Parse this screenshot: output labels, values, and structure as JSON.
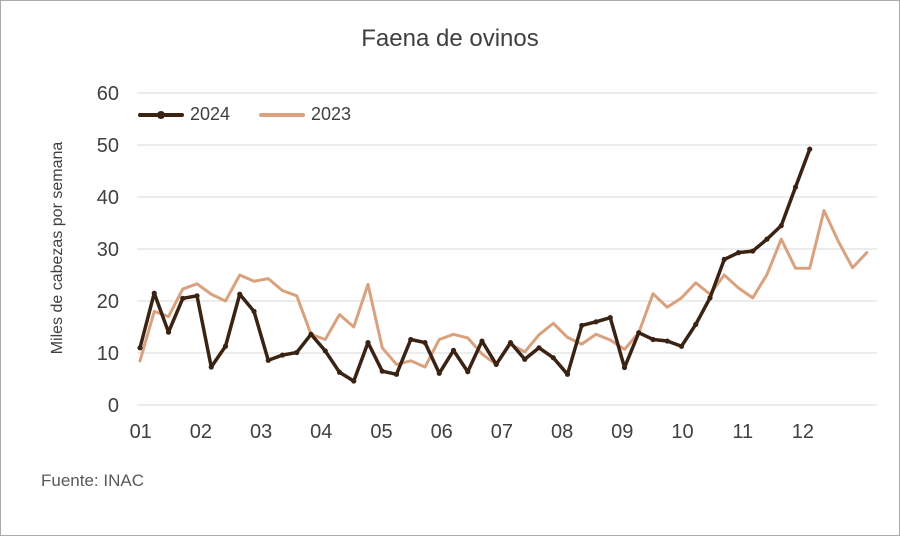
{
  "chart_data": {
    "type": "line",
    "title": "Faena de ovinos",
    "ylabel": "Miles de cabezas por semana",
    "source": "Fuente: INAC",
    "x_tick_labels": [
      "01",
      "02",
      "03",
      "04",
      "05",
      "06",
      "07",
      "08",
      "09",
      "10",
      "11",
      "12"
    ],
    "y_ticks": [
      0,
      10,
      20,
      30,
      40,
      50,
      60
    ],
    "ylim": [
      0,
      60
    ],
    "x_unit": "semana",
    "weeks": 52,
    "grid": true,
    "legend_position": "top-left-inside",
    "colors": {
      "s2024": "#3B2314",
      "s2023": "#D9A17E",
      "grid": "#D9D9D9",
      "text": "#404040"
    },
    "series": [
      {
        "name": "2024",
        "color": "#3B2314",
        "marker": true,
        "values": [
          11,
          21.5,
          14,
          20.5,
          21,
          7.3,
          11.3,
          21.3,
          18,
          8.6,
          9.6,
          10.1,
          13.6,
          10.4,
          6.3,
          4.6,
          12,
          6.5,
          5.9,
          12.6,
          12,
          6.1,
          10.5,
          6.4,
          12.3,
          7.8,
          12,
          8.8,
          11,
          9.1,
          5.9,
          15.3,
          16,
          16.8,
          7.2,
          13.9,
          12.6,
          12.3,
          11.3,
          15.5,
          20.6,
          28,
          29.3,
          29.6,
          31.9,
          34.5,
          41.9,
          49.2
        ]
      },
      {
        "name": "2023",
        "color": "#D9A17E",
        "marker": false,
        "values": [
          8.5,
          18,
          17,
          22.3,
          23.3,
          21.3,
          20,
          25,
          23.8,
          24.3,
          22,
          21,
          13.6,
          12.6,
          17.4,
          15,
          23.2,
          11,
          7.8,
          8.5,
          7.3,
          12.6,
          13.6,
          12.9,
          9.8,
          7.8,
          11.7,
          10.2,
          13.5,
          15.7,
          13,
          11.7,
          13.6,
          12.5,
          10.7,
          13.9,
          21.4,
          18.8,
          20.6,
          23.5,
          21.3,
          25,
          22.5,
          20.6,
          25.1,
          31.9,
          26.3,
          26.3,
          37.4,
          31.5,
          26.4,
          29.3
        ]
      }
    ]
  }
}
